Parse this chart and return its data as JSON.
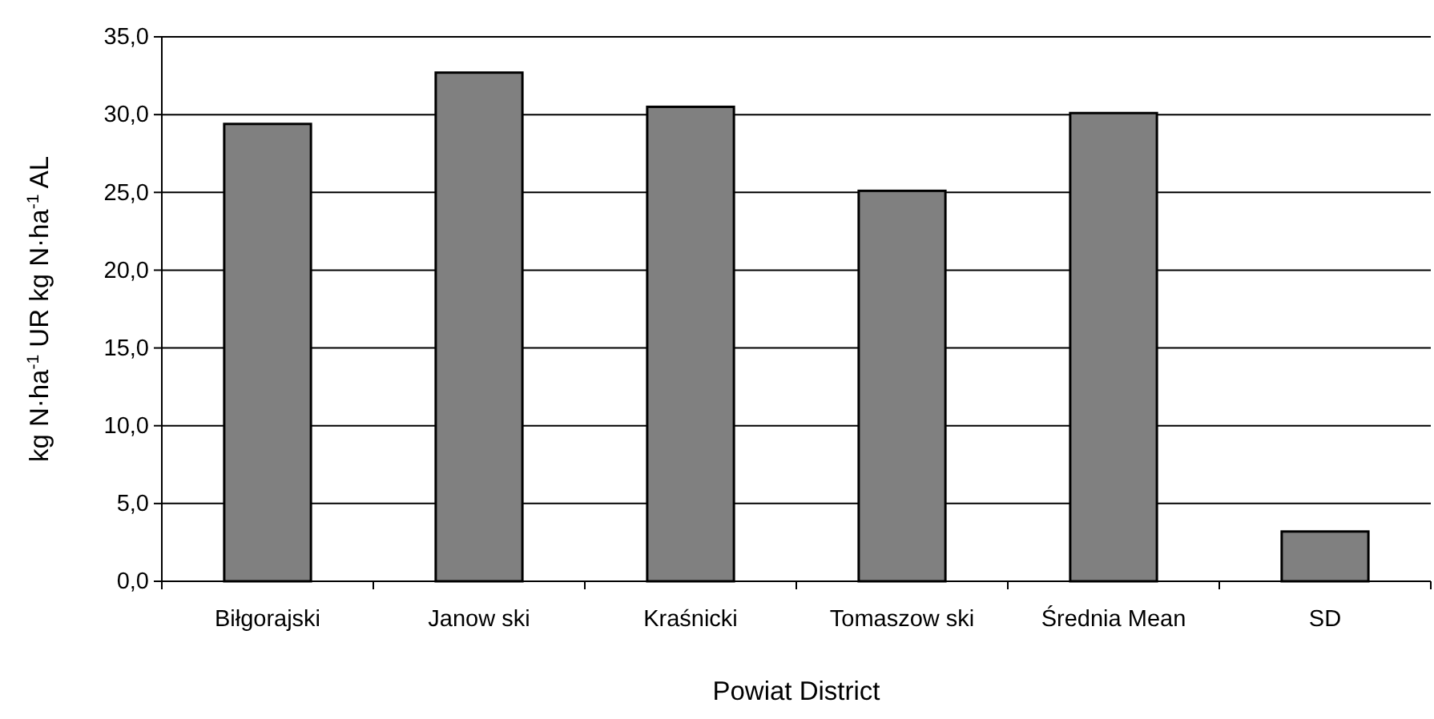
{
  "chart_data": {
    "type": "bar",
    "xlabel": "Powiat District",
    "ylabel": "kg N·ha$^{-1}$ UR  kg N·ha$^{-1}$ AL",
    "categories": [
      "Biłgorajski",
      "Janow ski",
      "Kraśnicki",
      "Tomaszow ski",
      "Średnia Mean",
      "SD"
    ],
    "values": [
      29.4,
      32.7,
      30.5,
      25.1,
      30.1,
      3.2
    ],
    "color": "#808080",
    "ylim": [
      0,
      35
    ],
    "yticks": [
      {
        "value": 0,
        "label": "0,0"
      },
      {
        "value": 5,
        "label": "5,0"
      },
      {
        "value": 10,
        "label": "10,0"
      },
      {
        "value": 15,
        "label": "15,0"
      },
      {
        "value": 20,
        "label": "20,0"
      },
      {
        "value": 25,
        "label": "25,0"
      },
      {
        "value": 30,
        "label": "30,0"
      },
      {
        "value": 35,
        "label": "35,0"
      }
    ],
    "grid": "y"
  }
}
